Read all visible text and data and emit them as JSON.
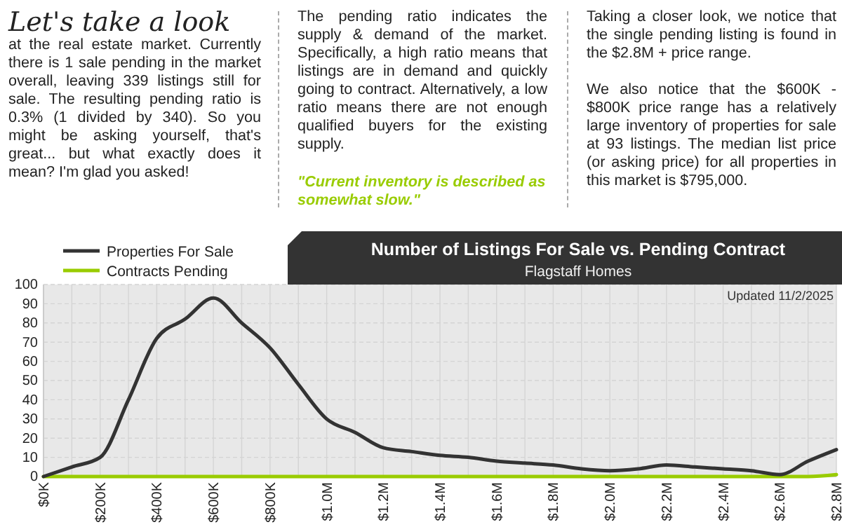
{
  "chart_data": {
    "type": "line",
    "title": "Number of Listings For Sale vs. Pending Contract",
    "subtitle": "Flagstaff Homes",
    "annotations": [
      "Let's take a look",
      "at the real estate market.  Currently there is 1 sale pending in the market overall, leaving 339 listings still for sale.  The resulting pending ratio is 0.3% (1 divided by 340).  So you might be asking yourself, that's great... but what exactly does it mean?  I'm glad you asked!",
      "The pending ratio indicates the supply & demand of the market.  Specifically, a high ratio means that listings are in demand and quickly going to contract. Alternatively, a low ratio means there are not enough qualified buyers for the existing supply.",
      "\"Current inventory is described as somewhat slow.\"",
      "Taking a closer look, we notice that the single pending listing is found in the $2.8M + price range.",
      "We also notice that the $600K - $800K price range has a relatively large inventory of properties for sale at 93 listings.  The median list price (or asking price) for all properties in this market is $795,000.",
      "Updated 11/2/2025"
    ],
    "x": [
      0,
      100000,
      200000,
      300000,
      400000,
      500000,
      600000,
      700000,
      800000,
      900000,
      1000000,
      1100000,
      1200000,
      1300000,
      1400000,
      1500000,
      1600000,
      1700000,
      1800000,
      1900000,
      2000000,
      2100000,
      2200000,
      2300000,
      2400000,
      2500000,
      2600000,
      2700000,
      2800000
    ],
    "series": [
      {
        "name": "Properties For Sale",
        "color": "#333333",
        "values": [
          0,
          5,
          10,
          40,
          72,
          82,
          93,
          80,
          67,
          48,
          30,
          23,
          15,
          13,
          11,
          10,
          8,
          7,
          6,
          4,
          3,
          4,
          6,
          5,
          4,
          3,
          1,
          8,
          14
        ]
      },
      {
        "name": "Contracts Pending",
        "color": "#99cc00",
        "values": [
          0,
          0,
          0,
          0,
          0,
          0,
          0,
          0,
          0,
          0,
          0,
          0,
          0,
          0,
          0,
          0,
          0,
          0,
          0,
          0,
          0,
          0,
          0,
          0,
          0,
          0,
          0,
          0,
          1
        ]
      }
    ],
    "xlim": [
      0,
      2800000
    ],
    "xticks": [
      {
        "value": 0,
        "label": "$0K"
      },
      {
        "value": 200000,
        "label": "$200K"
      },
      {
        "value": 400000,
        "label": "$400K"
      },
      {
        "value": 600000,
        "label": "$600K"
      },
      {
        "value": 800000,
        "label": "$800K"
      },
      {
        "value": 1000000,
        "label": "$1.0M"
      },
      {
        "value": 1200000,
        "label": "$1.2M"
      },
      {
        "value": 1400000,
        "label": "$1.4M"
      },
      {
        "value": 1600000,
        "label": "$1.6M"
      },
      {
        "value": 1800000,
        "label": "$1.8M"
      },
      {
        "value": 2000000,
        "label": "$2.0M"
      },
      {
        "value": 2200000,
        "label": "$2.2M"
      },
      {
        "value": 2400000,
        "label": "$2.4M"
      },
      {
        "value": 2600000,
        "label": "$2.6M"
      },
      {
        "value": 2800000,
        "label": "$2.8M"
      }
    ],
    "ylim": [
      0,
      100
    ],
    "yticks": [
      0,
      10,
      20,
      30,
      40,
      50,
      60,
      70,
      80,
      90,
      100
    ],
    "grid": true,
    "legend": "top left",
    "marker": "none",
    "line_style": "solid"
  }
}
